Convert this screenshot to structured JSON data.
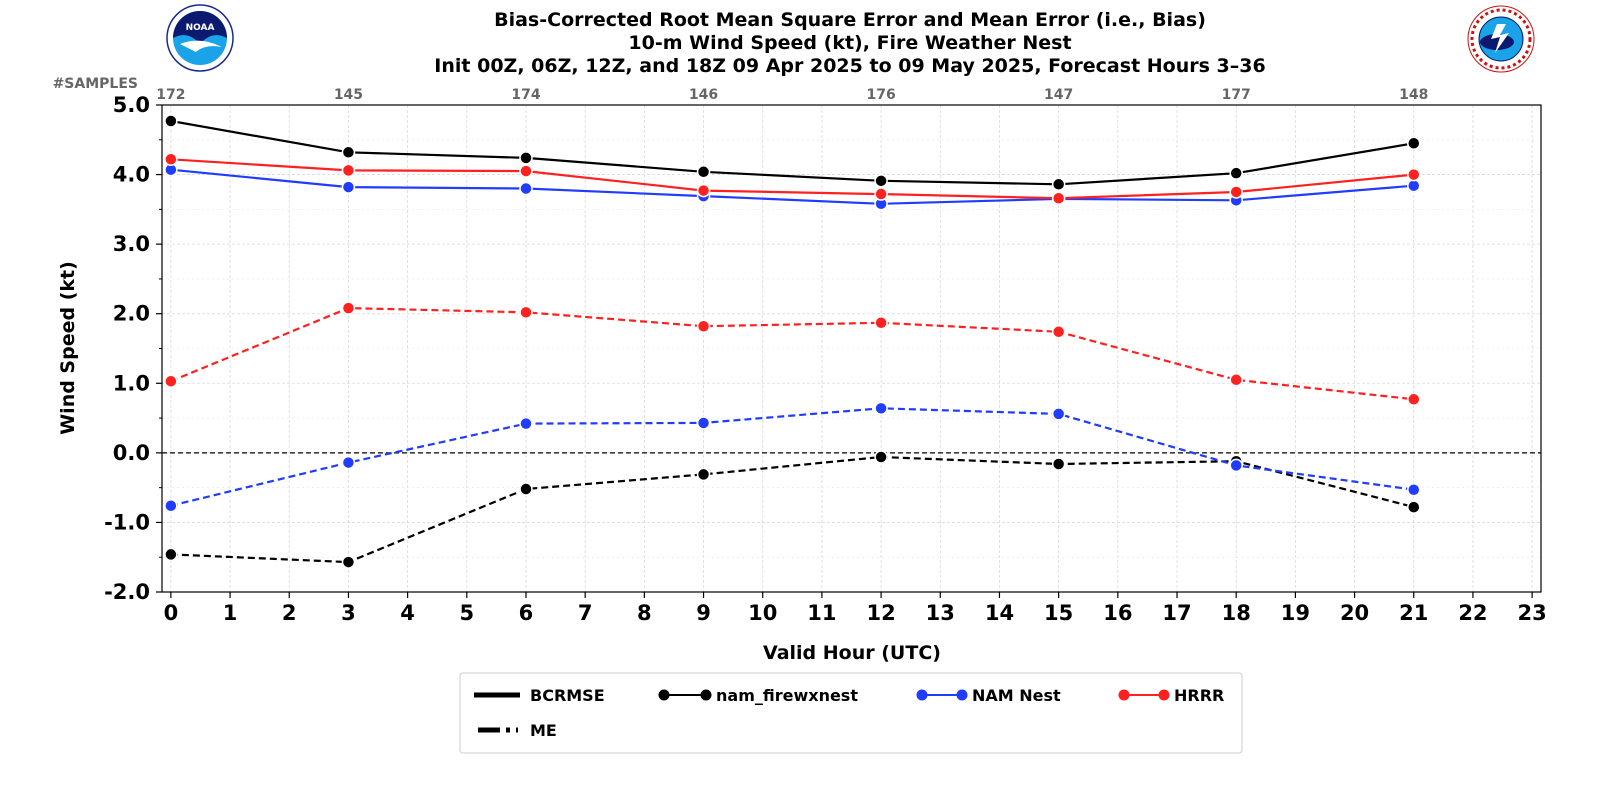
{
  "chart_data": {
    "type": "line",
    "title_lines": [
      "Bias-Corrected Root Mean Square Error and Mean Error (i.e., Bias)",
      "10-m Wind Speed (kt), Fire Weather Nest",
      "Init 00Z, 06Z, 12Z, and 18Z 09 Apr 2025 to 09 May 2025, Forecast Hours 3–36"
    ],
    "xlabel": "Valid Hour (UTC)",
    "ylabel": "Wind Speed (kt)",
    "xlim": [
      -0.15,
      23.15
    ],
    "ylim": [
      -2.0,
      5.0
    ],
    "x_ticks": [
      "0",
      "1",
      "2",
      "3",
      "4",
      "5",
      "6",
      "7",
      "8",
      "9",
      "10",
      "11",
      "12",
      "13",
      "14",
      "15",
      "16",
      "17",
      "18",
      "19",
      "20",
      "21",
      "22",
      "23"
    ],
    "y_ticks": [
      "-2.0",
      "-1.0",
      "0.0",
      "1.0",
      "2.0",
      "3.0",
      "4.0",
      "5.0"
    ],
    "grid": true,
    "zero_line": true,
    "samples_label": "#SAMPLES",
    "samples": {
      "x": [
        0,
        3,
        6,
        9,
        12,
        15,
        18,
        21
      ],
      "counts": [
        "172",
        "145",
        "174",
        "146",
        "176",
        "147",
        "177",
        "148"
      ]
    },
    "x": [
      0,
      3,
      6,
      9,
      12,
      15,
      18,
      21
    ],
    "series": [
      {
        "name": "nam_firewxnest",
        "metric": "BCRMSE",
        "color": "#000000",
        "values": [
          4.77,
          4.32,
          4.24,
          4.04,
          3.91,
          3.86,
          4.02,
          4.45
        ]
      },
      {
        "name": "NAM Nest",
        "metric": "BCRMSE",
        "color": "#1f3cff",
        "values": [
          4.07,
          3.82,
          3.8,
          3.69,
          3.58,
          3.65,
          3.63,
          3.84
        ]
      },
      {
        "name": "HRRR",
        "metric": "BCRMSE",
        "color": "#ff2020",
        "values": [
          4.22,
          4.06,
          4.05,
          3.77,
          3.72,
          3.66,
          3.75,
          4.0
        ]
      },
      {
        "name": "nam_firewxnest",
        "metric": "ME",
        "color": "#000000",
        "values": [
          -1.46,
          -1.57,
          -0.52,
          -0.31,
          -0.06,
          -0.16,
          -0.12,
          -0.78
        ]
      },
      {
        "name": "NAM Nest",
        "metric": "ME",
        "color": "#1f3cff",
        "values": [
          -0.76,
          -0.14,
          0.42,
          0.43,
          0.64,
          0.56,
          -0.18,
          -0.53
        ]
      },
      {
        "name": "HRRR",
        "metric": "ME",
        "color": "#ff2020",
        "values": [
          1.03,
          2.08,
          2.02,
          1.82,
          1.87,
          1.74,
          1.05,
          0.77
        ]
      }
    ],
    "legend": {
      "placement": "bottom-center",
      "style_entries": [
        {
          "label": "BCRMSE",
          "style": "solid"
        },
        {
          "label": "ME",
          "style": "dashed"
        }
      ],
      "model_entries": [
        {
          "label": "nam_firewxnest",
          "color": "#000000"
        },
        {
          "label": "NAM Nest",
          "color": "#1f3cff"
        },
        {
          "label": "HRRR",
          "color": "#ff2020"
        }
      ]
    },
    "logos": [
      {
        "name": "noaa-logo",
        "position": "top-left"
      },
      {
        "name": "nws-logo",
        "position": "top-right"
      }
    ]
  }
}
